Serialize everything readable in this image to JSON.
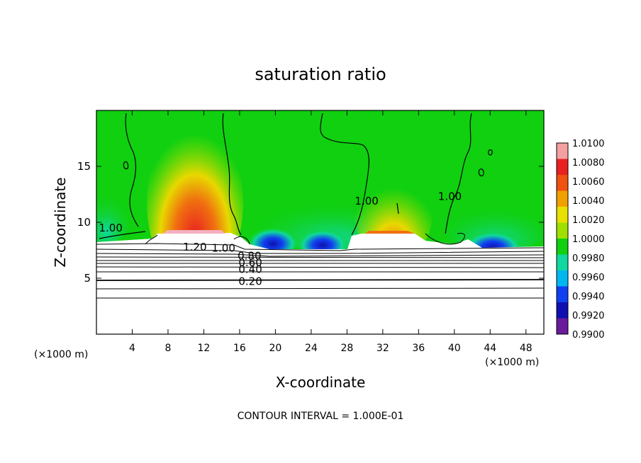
{
  "chart_data": {
    "type": "heatmap",
    "title": "saturation ratio",
    "xlabel": "X-coordinate",
    "ylabel": "Z-coordinate",
    "x_unit_left": "(×1000 m)",
    "x_unit_right": "(×1000 m)",
    "footer": "CONTOUR INTERVAL = 1.000E-01",
    "xlim": [
      0,
      50
    ],
    "ylim": [
      0,
      20
    ],
    "x_ticks": [
      4,
      8,
      12,
      16,
      20,
      24,
      28,
      32,
      36,
      40,
      44,
      48
    ],
    "y_ticks": [
      5,
      10,
      15
    ],
    "colorbar": {
      "labels": [
        "1.0100",
        "1.0080",
        "1.0060",
        "1.0040",
        "1.0020",
        "1.0000",
        "0.9980",
        "0.9960",
        "0.9940",
        "0.9920",
        "0.9900"
      ],
      "colors": [
        "#f4a0a0",
        "#e82020",
        "#f05010",
        "#f0a000",
        "#e8e000",
        "#a0e000",
        "#10d010",
        "#10d8a0",
        "#00b8f0",
        "#1040f0",
        "#1010b0",
        "#6a1a9a"
      ]
    },
    "contour_labels": [
      {
        "text": "1.00",
        "x": 1.6,
        "z": 9.5
      },
      {
        "text": "1.20",
        "x": 11,
        "z": 7.8
      },
      {
        "text": "1.00",
        "x": 14.2,
        "z": 7.7
      },
      {
        "text": "0.80",
        "x": 17.1,
        "z": 7.0
      },
      {
        "text": "0.60",
        "x": 17.2,
        "z": 6.4
      },
      {
        "text": "0.40",
        "x": 17.2,
        "z": 5.8
      },
      {
        "text": "0.20",
        "x": 17.2,
        "z": 4.7
      },
      {
        "text": "1.00",
        "x": 30.2,
        "z": 11.9
      },
      {
        "text": "1.00",
        "x": 39.5,
        "z": 12.3
      }
    ],
    "moist_layer_top_z": 8.3,
    "dry_isolines_z": [
      3.2,
      4.1,
      4.8,
      5.3,
      5.8,
      6.2,
      6.6,
      7.0
    ]
  }
}
